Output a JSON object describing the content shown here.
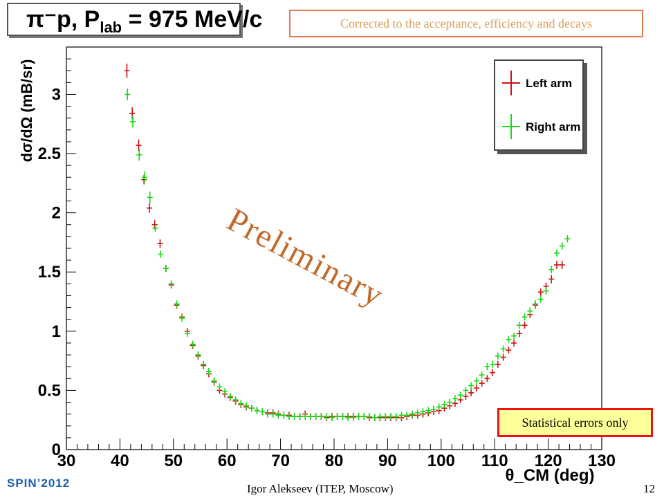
{
  "slide": {
    "title_main": "π⁻p, P",
    "title_sub": "lab",
    "title_rest": " = 975 MeV/c",
    "note_top": "Corrected to the acceptance, efficiency and decays",
    "note_bottom": "Statistical errors only",
    "watermark": "Preliminary",
    "footer_left": "SPIN’2012",
    "footer_center": "Igor Alekseev (ITEP, Moscow)",
    "footer_page": "12"
  },
  "chart_data": {
    "type": "scatter",
    "title": "π⁻p, P_lab = 975 MeV/c",
    "xlabel": "θ_CM (deg)",
    "ylabel": "dσ/dΩ (mB/sr)",
    "xlim": [
      30,
      130
    ],
    "ylim": [
      0,
      3.4
    ],
    "xticks": [
      30,
      40,
      50,
      60,
      70,
      80,
      90,
      100,
      110,
      120,
      130
    ],
    "yticks": [
      0,
      0.5,
      1,
      1.5,
      2,
      2.5,
      3
    ],
    "xtick_labels": [
      "30",
      "40",
      "50",
      "60",
      "70",
      "80",
      "90",
      "100",
      "110",
      "120",
      "130"
    ],
    "ytick_labels": [
      "0",
      "0.5",
      "1",
      "1.5",
      "2",
      "2.5",
      "3"
    ],
    "legend_position": "top-right",
    "grid": false,
    "series": [
      {
        "name": "Left arm",
        "color": "#d01010",
        "x": [
          41.3,
          42.3,
          43.5,
          44.5,
          45.5,
          46.5,
          47.5,
          48.6,
          49.6,
          50.6,
          51.6,
          52.6,
          53.6,
          54.6,
          55.6,
          56.6,
          57.6,
          58.6,
          59.6,
          60.6,
          61.6,
          62.6,
          63.6,
          64.6,
          65.6,
          66.6,
          67.6,
          68.6,
          69.6,
          70.6,
          71.6,
          72.6,
          73.6,
          74.6,
          75.6,
          76.6,
          77.6,
          78.6,
          79.6,
          80.6,
          81.6,
          82.6,
          83.6,
          84.6,
          85.6,
          86.6,
          87.6,
          88.6,
          89.6,
          90.6,
          91.6,
          92.6,
          93.6,
          94.6,
          95.6,
          96.6,
          97.6,
          98.6,
          99.6,
          100.6,
          101.6,
          102.6,
          103.6,
          104.6,
          105.6,
          106.6,
          107.6,
          108.6,
          109.6,
          110.6,
          111.6,
          112.6,
          113.6,
          114.6,
          115.6,
          116.6,
          117.6,
          118.6,
          119.6,
          120.6,
          121.6,
          122.6
        ],
        "y": [
          3.2,
          2.84,
          2.57,
          2.28,
          2.04,
          1.9,
          1.74,
          1.53,
          1.39,
          1.22,
          1.12,
          1.0,
          0.88,
          0.79,
          0.71,
          0.64,
          0.57,
          0.5,
          0.47,
          0.44,
          0.41,
          0.38,
          0.36,
          0.35,
          0.33,
          0.32,
          0.31,
          0.31,
          0.3,
          0.29,
          0.29,
          0.28,
          0.28,
          0.3,
          0.28,
          0.28,
          0.28,
          0.27,
          0.28,
          0.28,
          0.28,
          0.28,
          0.28,
          0.28,
          0.28,
          0.27,
          0.27,
          0.27,
          0.27,
          0.27,
          0.27,
          0.27,
          0.28,
          0.29,
          0.29,
          0.3,
          0.31,
          0.32,
          0.33,
          0.35,
          0.37,
          0.39,
          0.42,
          0.45,
          0.48,
          0.52,
          0.56,
          0.6,
          0.65,
          0.72,
          0.78,
          0.84,
          0.9,
          0.98,
          1.05,
          1.14,
          1.22,
          1.33,
          1.38,
          1.44,
          1.56,
          1.56
        ],
        "yerr": [
          0.06,
          0.05,
          0.05,
          0.04,
          0.04,
          0.04,
          0.035,
          0.03,
          0.03,
          0.025,
          0.025,
          0.02,
          0.02,
          0.02,
          0.015,
          0.015,
          0.015,
          0.012,
          0.012,
          0.012,
          0.01,
          0.01,
          0.01,
          0.01,
          0.01,
          0.01,
          0.01,
          0.01,
          0.01,
          0.01,
          0.01,
          0.01,
          0.01,
          0.01,
          0.01,
          0.01,
          0.01,
          0.01,
          0.01,
          0.01,
          0.01,
          0.01,
          0.01,
          0.01,
          0.01,
          0.01,
          0.01,
          0.01,
          0.01,
          0.01,
          0.01,
          0.01,
          0.01,
          0.01,
          0.01,
          0.01,
          0.01,
          0.01,
          0.01,
          0.01,
          0.01,
          0.012,
          0.012,
          0.012,
          0.012,
          0.015,
          0.015,
          0.015,
          0.015,
          0.018,
          0.02,
          0.02,
          0.02,
          0.025,
          0.025,
          0.03,
          0.03,
          0.03,
          0.03,
          0.035,
          0.035,
          0.035
        ]
      },
      {
        "name": "Right arm",
        "color": "#18d818",
        "x": [
          41.4,
          42.4,
          43.6,
          44.6,
          45.6,
          46.6,
          47.6,
          48.6,
          49.6,
          50.6,
          51.6,
          52.6,
          53.6,
          54.6,
          55.6,
          56.6,
          57.6,
          58.6,
          59.6,
          60.6,
          61.6,
          62.6,
          63.6,
          64.6,
          65.6,
          66.6,
          67.6,
          68.6,
          69.6,
          70.6,
          71.6,
          72.6,
          73.6,
          74.6,
          75.6,
          76.6,
          77.6,
          78.6,
          79.6,
          80.6,
          81.6,
          82.6,
          83.6,
          84.6,
          85.6,
          86.6,
          87.6,
          88.6,
          89.6,
          90.6,
          91.6,
          92.6,
          93.6,
          94.6,
          95.6,
          96.6,
          97.6,
          98.6,
          99.6,
          100.6,
          101.6,
          102.6,
          103.6,
          104.6,
          105.6,
          106.6,
          107.6,
          108.6,
          109.6,
          110.6,
          111.6,
          112.6,
          113.6,
          114.6,
          115.6,
          116.6,
          117.6,
          118.6,
          119.6,
          120.6,
          121.6,
          122.6,
          123.6
        ],
        "y": [
          3.0,
          2.77,
          2.49,
          2.3,
          2.13,
          1.87,
          1.65,
          1.53,
          1.4,
          1.23,
          1.11,
          0.98,
          0.89,
          0.8,
          0.72,
          0.66,
          0.58,
          0.53,
          0.49,
          0.45,
          0.42,
          0.39,
          0.37,
          0.35,
          0.33,
          0.32,
          0.3,
          0.3,
          0.29,
          0.29,
          0.28,
          0.28,
          0.28,
          0.28,
          0.28,
          0.28,
          0.28,
          0.28,
          0.27,
          0.28,
          0.28,
          0.27,
          0.27,
          0.28,
          0.28,
          0.28,
          0.27,
          0.28,
          0.28,
          0.28,
          0.28,
          0.29,
          0.29,
          0.3,
          0.31,
          0.32,
          0.33,
          0.34,
          0.36,
          0.38,
          0.4,
          0.43,
          0.46,
          0.5,
          0.54,
          0.58,
          0.63,
          0.7,
          0.72,
          0.79,
          0.85,
          0.93,
          0.96,
          1.05,
          1.12,
          1.17,
          1.23,
          1.27,
          1.34,
          1.52,
          1.66,
          1.72,
          1.78
        ]
      }
    ]
  }
}
